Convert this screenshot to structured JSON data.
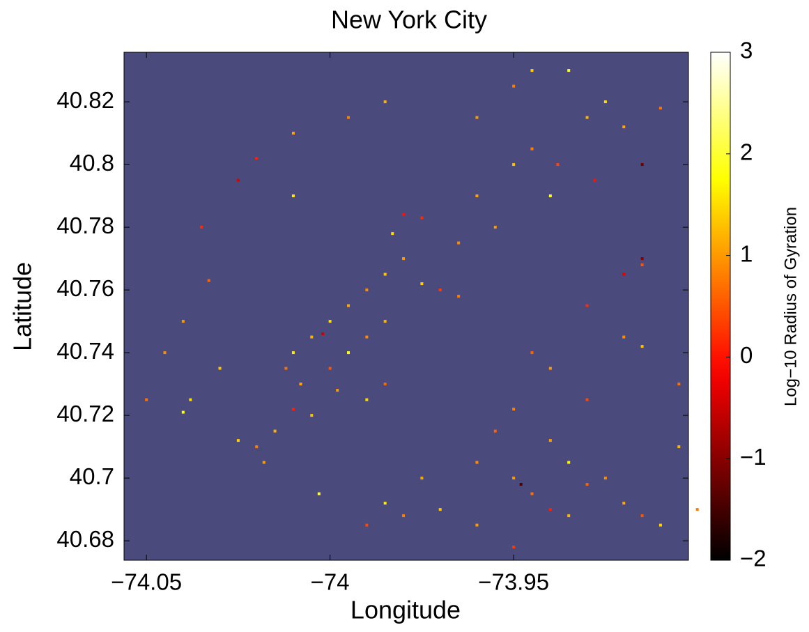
{
  "chart_data": {
    "type": "scatter",
    "title": "New York City",
    "xlabel": "Longitude",
    "ylabel": "Latitude",
    "background": "#4a4b7c",
    "colormap": "hot",
    "xlim": [
      -74.0561,
      -73.9024
    ],
    "ylim": [
      40.6738,
      40.8358
    ],
    "xticks": [
      {
        "value": -74.05,
        "label": "−74.05"
      },
      {
        "value": -74,
        "label": "−74"
      },
      {
        "value": -73.95,
        "label": "−73.95"
      }
    ],
    "yticks": [
      40.68,
      40.7,
      40.72,
      40.74,
      40.76,
      40.78,
      40.8,
      40.82
    ],
    "clim": [
      -2,
      3
    ],
    "cticks": [
      {
        "value": -2,
        "label": "−2"
      },
      {
        "value": -1,
        "label": "−1"
      },
      0,
      1,
      2,
      3
    ],
    "colorbar_label": "Log−10 Radius of Gyration",
    "x": [
      -74.005,
      -74.0,
      -73.995,
      -73.99,
      -73.985,
      -73.98,
      -73.975,
      -73.97,
      -73.965,
      -74.01,
      -74.012,
      -74.008,
      -74.0,
      -73.995,
      -73.99,
      -73.985,
      -74.002,
      -73.998,
      -74.005,
      -74.01,
      -73.99,
      -73.985,
      -74.015,
      -74.02,
      -74.025,
      -74.018,
      -73.98,
      -73.975,
      -73.96,
      -73.95,
      -73.945,
      -73.94,
      -73.938,
      -73.955,
      -73.965,
      -73.93,
      -73.925,
      -73.935,
      -73.92,
      -73.91,
      -73.945,
      -73.94,
      -73.92,
      -73.915,
      -73.92,
      -73.915,
      -73.93,
      -73.95,
      -73.945,
      -73.94,
      -73.935,
      -73.93,
      -73.925,
      -73.92,
      -73.915,
      -73.91,
      -73.95,
      -73.96,
      -73.97,
      -73.98,
      -73.985,
      -73.99,
      -73.975,
      -73.96,
      -73.955,
      -73.95,
      -73.94,
      -73.93,
      -73.905,
      -73.905,
      -74.04,
      -74.038,
      -74.035,
      -74.033,
      -74.025,
      -74.02,
      -74.01,
      -74.01,
      -73.995,
      -73.985,
      -74.04,
      -74.045,
      -74.03,
      -74.05,
      -73.96,
      -73.95,
      -73.945,
      -73.928,
      -73.915,
      -73.948,
      -73.9,
      -73.935,
      -74.003,
      -73.983,
      -73.915
    ],
    "y": [
      40.745,
      40.75,
      40.755,
      40.76,
      40.765,
      40.77,
      40.762,
      40.76,
      40.758,
      40.74,
      40.735,
      40.73,
      40.735,
      40.74,
      40.745,
      40.75,
      40.746,
      40.728,
      40.72,
      40.722,
      40.725,
      40.73,
      40.715,
      40.71,
      40.712,
      40.705,
      40.784,
      40.783,
      40.79,
      40.8,
      40.805,
      40.79,
      40.8,
      40.78,
      40.775,
      40.815,
      40.82,
      40.83,
      40.812,
      40.818,
      40.74,
      40.735,
      40.745,
      40.742,
      40.765,
      40.768,
      40.755,
      40.7,
      40.695,
      40.69,
      40.688,
      40.698,
      40.7,
      40.692,
      40.688,
      40.685,
      40.678,
      40.685,
      40.69,
      40.688,
      40.692,
      40.685,
      40.7,
      40.705,
      40.715,
      40.722,
      40.712,
      40.725,
      40.71,
      40.73,
      40.721,
      40.725,
      40.78,
      40.763,
      40.795,
      40.802,
      40.79,
      40.81,
      40.815,
      40.82,
      40.75,
      40.74,
      40.735,
      40.725,
      40.815,
      40.825,
      40.83,
      40.795,
      40.77,
      40.698,
      40.69,
      40.705,
      40.695,
      40.778,
      40.8
    ],
    "values": [
      1.2,
      1.5,
      1.1,
      0.9,
      1.3,
      1.0,
      1.4,
      0.3,
      0.8,
      1.6,
      0.7,
      1.1,
      0.5,
      1.8,
      0.9,
      1.2,
      -0.5,
      1.0,
      1.3,
      0.1,
      1.5,
      0.6,
      1.2,
      0.8,
      1.4,
      1.0,
      0.0,
      0.2,
      1.1,
      1.3,
      0.8,
      1.9,
      0.4,
      1.0,
      0.9,
      1.2,
      1.5,
      2.0,
      1.1,
      0.7,
      0.6,
      1.0,
      0.9,
      1.3,
      -0.3,
      0.5,
      0.2,
      1.0,
      0.7,
      0.1,
      1.2,
      0.6,
      0.9,
      1.1,
      0.5,
      1.4,
      0.3,
      1.0,
      1.3,
      0.8,
      1.6,
      0.4,
      1.1,
      0.9,
      0.6,
      0.8,
      1.0,
      0.4,
      1.2,
      0.7,
      1.8,
      1.5,
      0.2,
      0.6,
      -0.4,
      0.1,
      1.6,
      1.1,
      0.8,
      1.2,
      1.0,
      0.9,
      1.3,
      0.7,
      1.0,
      0.8,
      1.4,
      0.0,
      -1.0,
      -1.5,
      0.8,
      1.7,
      2.0,
      1.5,
      -1.2
    ]
  }
}
